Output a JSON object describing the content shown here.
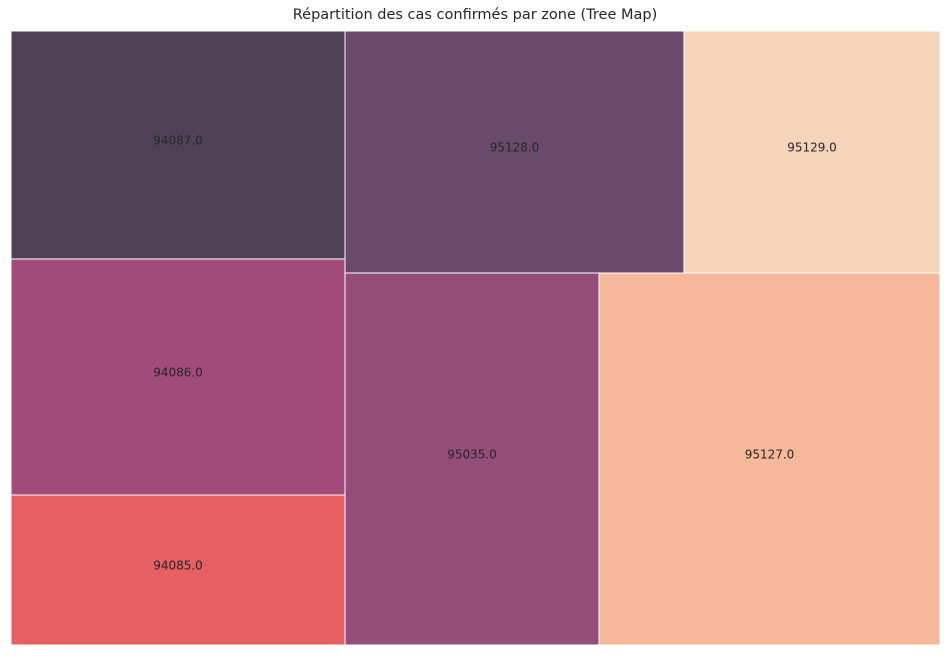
{
  "chart_data": {
    "type": "treemap",
    "title": "Répartition des cas confirmés par zone (Tree Map)",
    "cells": [
      {
        "label": "94087.0",
        "color": "#4f4257"
      },
      {
        "label": "94086.0",
        "color": "#a24a79"
      },
      {
        "label": "94085.0",
        "color": "#e65f65"
      },
      {
        "label": "95128.0",
        "color": "#6a4a6a"
      },
      {
        "label": "95035.0",
        "color": "#944c79"
      },
      {
        "label": "95129.0",
        "color": "#f6d4bb"
      },
      {
        "label": "95127.0",
        "color": "#f6b89a"
      }
    ]
  }
}
